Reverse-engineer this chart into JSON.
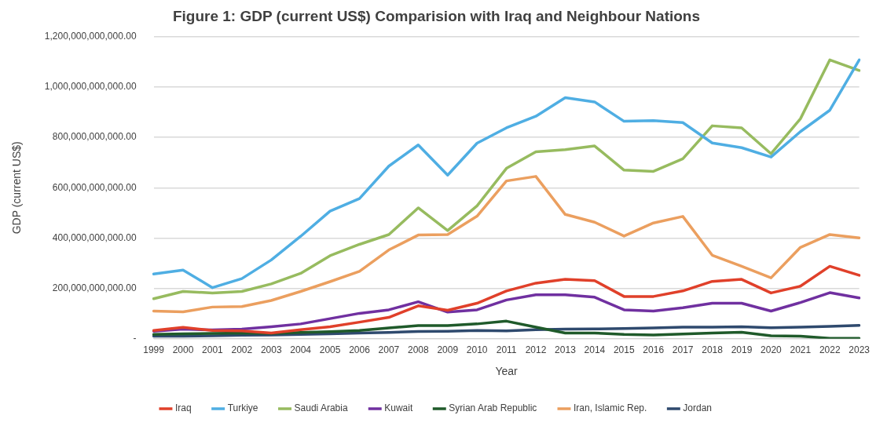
{
  "chart_data": {
    "type": "line",
    "title": "Figure 1: GDP (current US$) Comparision with Iraq and Neighbour Nations",
    "xlabel": "Year",
    "ylabel": "GDP (current US$)",
    "categories": [
      "1999",
      "2000",
      "2001",
      "2002",
      "2003",
      "2004",
      "2005",
      "2006",
      "2007",
      "2008",
      "2009",
      "2010",
      "2011",
      "2012",
      "2013",
      "2014",
      "2015",
      "2016",
      "2017",
      "2018",
      "2019",
      "2020",
      "2021",
      "2022",
      "2023"
    ],
    "series": [
      {
        "name": "Iraq",
        "color": "#e0402a",
        "values": [
          33000000000.0,
          45000000000.0,
          33000000000.0,
          31000000000.0,
          23000000000.0,
          36000000000.0,
          48000000000.0,
          66000000000.0,
          85000000000.0,
          131000000000.0,
          113000000000.0,
          141000000000.0,
          190000000000.0,
          221000000000.0,
          236000000000.0,
          231000000000.0,
          168000000000.0,
          168000000000.0,
          190000000000.0,
          228000000000.0,
          236000000000.0,
          182000000000.0,
          209000000000.0,
          288000000000.0,
          252000000000.0
        ]
      },
      {
        "name": "Turkiye",
        "color": "#4faee3",
        "values": [
          257000000000.0,
          273000000000.0,
          203000000000.0,
          239000000000.0,
          313000000000.0,
          407000000000.0,
          507000000000.0,
          557000000000.0,
          686000000000.0,
          770000000000.0,
          650000000000.0,
          777000000000.0,
          838000000000.0,
          884000000000.0,
          958000000000.0,
          941000000000.0,
          864000000000.0,
          867000000000.0,
          859000000000.0,
          778000000000.0,
          759000000000.0,
          722000000000.0,
          823000000000.0,
          908000000000.0,
          1108000000000.0
        ]
      },
      {
        "name": "Saudi Arabia",
        "color": "#97bb5f",
        "values": [
          159000000000.0,
          188000000000.0,
          182000000000.0,
          188000000000.0,
          218000000000.0,
          260000000000.0,
          330000000000.0,
          375000000000.0,
          414000000000.0,
          520000000000.0,
          430000000000.0,
          528000000000.0,
          677000000000.0,
          743000000000.0,
          751000000000.0,
          766000000000.0,
          670000000000.0,
          665000000000.0,
          715000000000.0,
          846000000000.0,
          838000000000.0,
          735000000000.0,
          874000000000.0,
          1108000000000.0,
          1066000000000.0
        ]
      },
      {
        "name": "Kuwait",
        "color": "#7030a0",
        "values": [
          30000000000.0,
          38000000000.0,
          35000000000.0,
          38000000000.0,
          48000000000.0,
          59000000000.0,
          80000000000.0,
          101000000000.0,
          115000000000.0,
          147000000000.0,
          106000000000.0,
          115000000000.0,
          154000000000.0,
          175000000000.0,
          175000000000.0,
          165000000000.0,
          115000000000.0,
          110000000000.0,
          123000000000.0,
          141000000000.0,
          141000000000.0,
          110000000000.0,
          144000000000.0,
          183000000000.0,
          162000000000.0
        ]
      },
      {
        "name": "Syrian Arab Republic",
        "color": "#1f5a2a",
        "values": [
          17000000000.0,
          20000000000.0,
          21000000000.0,
          23000000000.0,
          21000000000.0,
          25000000000.0,
          28000000000.0,
          33000000000.0,
          43000000000.0,
          52000000000.0,
          52000000000.0,
          59000000000.0,
          70000000000.0,
          46000000000.0,
          23000000000.0,
          23000000000.0,
          17000000000.0,
          15000000000.0,
          19000000000.0,
          23000000000.0,
          26000000000.0,
          12000000000.0,
          10000000000.0,
          2000000000.0,
          2000000000.0
        ]
      },
      {
        "name": "Iran, Islamic Rep.",
        "color": "#eb9f5f",
        "values": [
          110000000000.0,
          107000000000.0,
          126000000000.0,
          128000000000.0,
          152000000000.0,
          188000000000.0,
          227000000000.0,
          268000000000.0,
          353000000000.0,
          412000000000.0,
          414000000000.0,
          487000000000.0,
          627000000000.0,
          645000000000.0,
          494000000000.0,
          463000000000.0,
          408000000000.0,
          460000000000.0,
          486000000000.0,
          332000000000.0,
          288000000000.0,
          242000000000.0,
          363000000000.0,
          414000000000.0,
          401000000000.0
        ]
      },
      {
        "name": "Jordan",
        "color": "#2f4a6e",
        "values": [
          10000000000.0,
          10000000000.0,
          12000000000.0,
          14000000000.0,
          15000000000.0,
          17000000000.0,
          20000000000.0,
          23000000000.0,
          25000000000.0,
          29000000000.0,
          30000000000.0,
          33000000000.0,
          31000000000.0,
          36000000000.0,
          38000000000.0,
          39000000000.0,
          41000000000.0,
          43000000000.0,
          46000000000.0,
          46000000000.0,
          48000000000.0,
          44000000000.0,
          46000000000.0,
          49000000000.0,
          53000000000.0
        ]
      }
    ],
    "ylim": [
      0,
      1200000000000.0
    ],
    "yticks": [
      {
        "value": 0,
        "label": "-"
      },
      {
        "value": 200000000000.0,
        "label": "200,000,000,000.00"
      },
      {
        "value": 400000000000.0,
        "label": "400,000,000,000.00"
      },
      {
        "value": 600000000000.0,
        "label": "600,000,000,000.00"
      },
      {
        "value": 800000000000.0,
        "label": "800,000,000,000.00"
      },
      {
        "value": 1000000000000.0,
        "label": "1,000,000,000,000.00"
      },
      {
        "value": 1200000000000.0,
        "label": "1,200,000,000,000.00"
      }
    ],
    "grid": "y",
    "legend": "bottom",
    "marker": "none",
    "line_style": "solid"
  }
}
